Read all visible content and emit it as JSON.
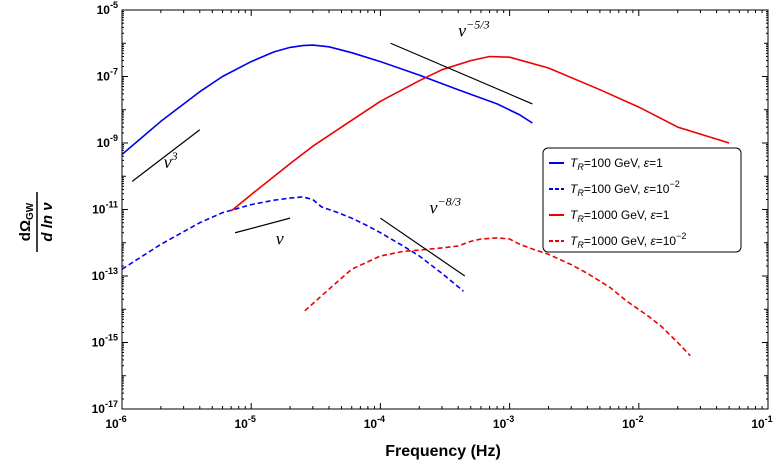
{
  "chart_data": {
    "type": "line",
    "xlabel": "Frequency (Hz)",
    "ylabel": {
      "numerator": "dΩ",
      "numerator_sub": "GW",
      "denominator": "d ln ν"
    },
    "xscale": "log",
    "yscale": "log",
    "xlim": [
      1e-06,
      0.1
    ],
    "ylim": [
      1e-17,
      1e-05
    ],
    "x_ticks": [
      {
        "base": "10",
        "exp": "-6",
        "value": 1e-06
      },
      {
        "base": "10",
        "exp": "-5",
        "value": 1e-05
      },
      {
        "base": "10",
        "exp": "-4",
        "value": 0.0001
      },
      {
        "base": "10",
        "exp": "-3",
        "value": 0.001
      },
      {
        "base": "10",
        "exp": "-2",
        "value": 0.01
      },
      {
        "base": "10",
        "exp": "-1",
        "value": 0.1
      }
    ],
    "y_ticks": [
      {
        "base": "10",
        "exp": "-5",
        "value": 1e-05
      },
      {
        "base": "10",
        "exp": "-7",
        "value": 1e-07
      },
      {
        "base": "10",
        "exp": "-9",
        "value": 1e-09
      },
      {
        "base": "10",
        "exp": "-11",
        "value": 1e-11
      },
      {
        "base": "10",
        "exp": "-13",
        "value": 1e-13
      },
      {
        "base": "10",
        "exp": "-15",
        "value": 1e-15
      },
      {
        "base": "10",
        "exp": "-17",
        "value": 1e-17
      }
    ],
    "legend": {
      "position": "right",
      "entries": [
        {
          "label_T": "T",
          "label_sub": "R",
          "label_rest": "=100 GeV, ",
          "label_eps": "ε",
          "label_epsval": "=1",
          "label_epssup": "",
          "color": "#0000ee",
          "dash": "solid"
        },
        {
          "label_T": "T",
          "label_sub": "R",
          "label_rest": "=100 GeV, ",
          "label_eps": "ε",
          "label_epsval": "=10",
          "label_epssup": "−2",
          "color": "#0000ee",
          "dash": "dashed"
        },
        {
          "label_T": "T",
          "label_sub": "R",
          "label_rest": "=1000 GeV, ",
          "label_eps": "ε",
          "label_epsval": "=1",
          "label_epssup": "",
          "color": "#ee0000",
          "dash": "solid"
        },
        {
          "label_T": "T",
          "label_sub": "R",
          "label_rest": "=1000 GeV, ",
          "label_eps": "ε",
          "label_epsval": "=10",
          "label_epssup": "−2",
          "color": "#ee0000",
          "dash": "dashed"
        }
      ]
    },
    "series": [
      {
        "name": "TR=100 GeV, eps=1",
        "color": "#0000ee",
        "dash": "solid",
        "points": [
          [
            1e-06,
            4.5e-10
          ],
          [
            2e-06,
            4.5e-09
          ],
          [
            4e-06,
            3.5e-08
          ],
          [
            6e-06,
            1e-07
          ],
          [
            1e-05,
            2.8e-07
          ],
          [
            1.5e-05,
            5.5e-07
          ],
          [
            2e-05,
            7.5e-07
          ],
          [
            2.5e-05,
            8.5e-07
          ],
          [
            3e-05,
            8.8e-07
          ],
          [
            4e-05,
            7.8e-07
          ],
          [
            6e-05,
            5.2e-07
          ],
          [
            0.0001,
            2.8e-07
          ],
          [
            0.0002,
            1.1e-07
          ],
          [
            0.0004,
            4e-08
          ],
          [
            0.0008,
            1.5e-08
          ],
          [
            0.0012,
            7e-09
          ],
          [
            0.0015,
            4e-09
          ]
        ]
      },
      {
        "name": "TR=100 GeV, eps=1e-2",
        "color": "#0000ee",
        "dash": "dashed",
        "points": [
          [
            1e-06,
            1.6e-13
          ],
          [
            2e-06,
            9e-13
          ],
          [
            4e-06,
            4e-12
          ],
          [
            6e-06,
            8e-12
          ],
          [
            1e-05,
            1.4e-11
          ],
          [
            1.5e-05,
            1.9e-11
          ],
          [
            2e-05,
            2.2e-11
          ],
          [
            2.5e-05,
            2.4e-11
          ],
          [
            3e-05,
            2e-11
          ],
          [
            3.5e-05,
            1.2e-11
          ],
          [
            4.5e-05,
            8.5e-12
          ],
          [
            6e-05,
            5.5e-12
          ],
          [
            8e-05,
            3.2e-12
          ],
          [
            0.0001,
            2e-12
          ],
          [
            0.00015,
            8e-13
          ],
          [
            0.0002,
            4e-13
          ],
          [
            0.0003,
            1.2e-13
          ],
          [
            0.00044,
            3.5e-14
          ]
        ]
      },
      {
        "name": "TR=1000 GeV, eps=1",
        "color": "#ee0000",
        "dash": "solid",
        "points": [
          [
            7e-06,
            9e-12
          ],
          [
            1e-05,
            2.8e-11
          ],
          [
            2e-05,
            2.4e-10
          ],
          [
            3e-05,
            8e-10
          ],
          [
            5e-05,
            3e-09
          ],
          [
            0.0001,
            1.8e-08
          ],
          [
            0.0002,
            7.5e-08
          ],
          [
            0.0003,
            1.6e-07
          ],
          [
            0.0005,
            3e-07
          ],
          [
            0.0007,
            4e-07
          ],
          [
            0.001,
            3.8e-07
          ],
          [
            0.002,
            1.8e-07
          ],
          [
            0.005,
            4e-08
          ],
          [
            0.01,
            1.2e-08
          ],
          [
            0.02,
            3e-09
          ],
          [
            0.05,
            1e-09
          ]
        ]
      },
      {
        "name": "TR=1000 GeV, eps=1e-2",
        "color": "#ee0000",
        "dash": "dashed",
        "points": [
          [
            2.6e-05,
            9e-15
          ],
          [
            4e-05,
            4e-14
          ],
          [
            6e-05,
            1.6e-13
          ],
          [
            0.0001,
            4e-13
          ],
          [
            0.00015,
            5.5e-13
          ],
          [
            0.0002,
            6e-13
          ],
          [
            0.0003,
            7e-13
          ],
          [
            0.0004,
            8e-13
          ],
          [
            0.0005,
            1.1e-12
          ],
          [
            0.0006,
            1.3e-12
          ],
          [
            0.0008,
            1.4e-12
          ],
          [
            0.001,
            1.3e-12
          ],
          [
            0.0012,
            9e-13
          ],
          [
            0.0015,
            6.5e-13
          ],
          [
            0.002,
            4.5e-13
          ],
          [
            0.003,
            2.2e-13
          ],
          [
            0.004,
            1.2e-13
          ],
          [
            0.006,
            4.5e-14
          ],
          [
            0.008,
            1.8e-14
          ],
          [
            0.012,
            6e-15
          ],
          [
            0.015,
            3e-15
          ],
          [
            0.02,
            1e-15
          ],
          [
            0.025,
            4e-16
          ]
        ]
      }
    ],
    "slope_guides": [
      {
        "name": "nu3",
        "label": "ν",
        "sup": "3",
        "x1": 1.2e-06,
        "y1": 7e-11,
        "x2": 4e-06,
        "y2": 2.5e-09,
        "label_x": 2.1e-06,
        "label_y": 1.8e-10
      },
      {
        "name": "nu-5/3",
        "label": "ν",
        "sup": "−5/3",
        "x1": 0.00012,
        "y1": 1e-06,
        "x2": 0.0015,
        "y2": 1.5e-08,
        "label_x": 0.0004,
        "label_y": 1.6e-06
      },
      {
        "name": "nu",
        "label": "ν",
        "sup": "",
        "x1": 7.5e-06,
        "y1": 2e-12,
        "x2": 2e-05,
        "y2": 5.5e-12,
        "label_x": 1.55e-05,
        "label_y": 9e-13
      },
      {
        "name": "nu-8/3",
        "label": "ν",
        "sup": "−8/3",
        "x1": 0.0001,
        "y1": 5.5e-12,
        "x2": 0.00045,
        "y2": 1e-13,
        "label_x": 0.00024,
        "label_y": 7.5e-12
      }
    ]
  }
}
